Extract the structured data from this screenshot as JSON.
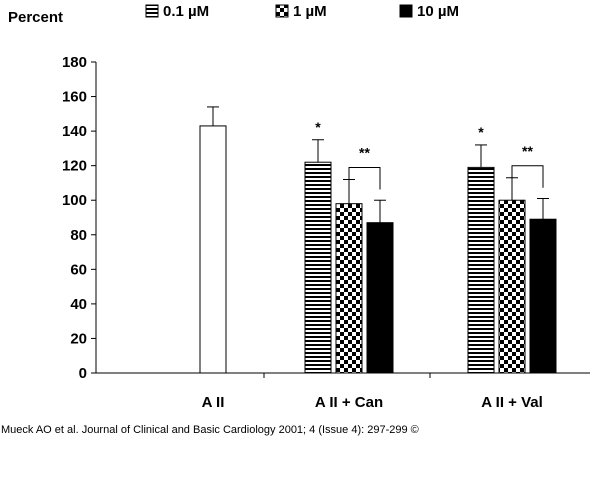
{
  "chart_data": {
    "type": "bar",
    "ylabel": "Percent",
    "ylim": [
      0,
      180
    ],
    "yticks": [
      0,
      20,
      40,
      60,
      80,
      100,
      120,
      140,
      160,
      180
    ],
    "categories": [
      "A II",
      "A II + Can",
      "A II + Val"
    ],
    "legend_position": "top",
    "series": [
      {
        "name": "0.1 µM",
        "fill": "horizontal-stripes",
        "color": "#000000",
        "values": [
          null,
          122,
          119
        ],
        "errors": [
          null,
          13,
          13
        ],
        "labels": [
          null,
          "*",
          "*"
        ]
      },
      {
        "name": "1 µM",
        "fill": "checkerboard",
        "color": "#000000",
        "values": [
          null,
          98,
          100
        ],
        "errors": [
          null,
          14,
          13
        ],
        "labels": [
          null,
          "",
          ""
        ]
      },
      {
        "name": "10 µM",
        "fill": "solid",
        "color": "#000000",
        "values": [
          null,
          87,
          89
        ],
        "errors": [
          null,
          13,
          12
        ],
        "labels": [
          null,
          "",
          ""
        ]
      }
    ],
    "control": {
      "category": "A II",
      "value": 143,
      "error": 11,
      "fill": "white"
    },
    "brackets": [
      {
        "category": "A II + Can",
        "label": "**"
      },
      {
        "category": "A II + Val",
        "label": "**"
      }
    ]
  },
  "credit": "Mueck AO et al. Journal of Clinical and Basic Cardiology 2001; 4 (Issue 4): 297-299 ©"
}
